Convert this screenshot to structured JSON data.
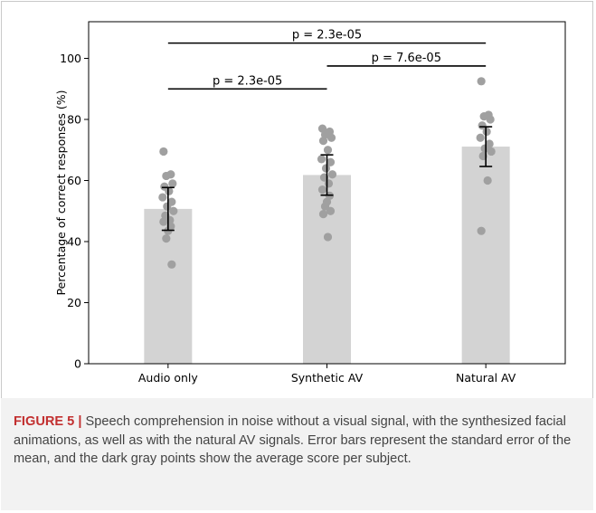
{
  "chart_data": {
    "type": "bar",
    "categories": [
      "Audio only",
      "Synthetic AV",
      "Natural AV"
    ],
    "values": [
      50.7,
      61.8,
      71.1
    ],
    "error": [
      7.0,
      6.6,
      6.5
    ],
    "ylabel": "Percentage of correct responses (%)",
    "xlabel": "",
    "ylim": [
      0,
      112
    ],
    "yticks": [
      0,
      20,
      40,
      60,
      80,
      100
    ],
    "grid": false,
    "colors": {
      "bar": "#d3d3d3",
      "point": "#a0a0a0",
      "errorbar": "#000000"
    },
    "subject_points": [
      [
        69.5,
        62.0,
        61.5,
        59.0,
        58.0,
        56.5,
        54.5,
        53.0,
        51.5,
        50.0,
        48.5,
        47.0,
        46.5,
        45.0,
        43.5,
        41.0,
        32.5
      ],
      [
        77.0,
        76.0,
        75.0,
        74.0,
        73.0,
        70.0,
        67.0,
        66.0,
        64.0,
        62.0,
        61.0,
        59.0,
        57.0,
        55.0,
        53.0,
        51.5,
        50.0,
        49.0,
        41.5
      ],
      [
        92.5,
        81.5,
        81.0,
        80.0,
        78.0,
        76.0,
        74.0,
        72.0,
        70.5,
        69.5,
        68.0,
        60.0,
        43.5
      ]
    ],
    "significance": [
      {
        "from": 0,
        "to": 1,
        "y": 90,
        "label": "p = 2.3e-05"
      },
      {
        "from": 1,
        "to": 2,
        "y": 97.5,
        "label": "p = 7.6e-05"
      },
      {
        "from": 0,
        "to": 2,
        "y": 105,
        "label": "p = 2.3e-05"
      }
    ]
  },
  "caption": {
    "label": "FIGURE 5 |",
    "text": " Speech comprehension in noise without a visual signal, with the synthesized facial animations, as well as with the natural AV signals. Error bars represent the standard error of the mean, and the dark gray points show the average score per subject."
  }
}
